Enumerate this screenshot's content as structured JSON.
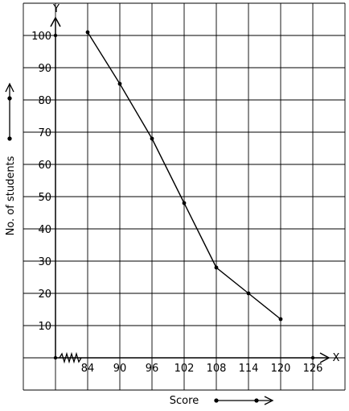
{
  "chart_data": {
    "type": "line",
    "xlabel": "Score",
    "ylabel": "No. of students",
    "axis_x_name": "X",
    "axis_y_name": "Y",
    "x_ticks": [
      84,
      90,
      96,
      102,
      108,
      114,
      120,
      126
    ],
    "y_ticks": [
      10,
      20,
      30,
      40,
      50,
      60,
      70,
      80,
      90,
      100
    ],
    "xlim": [
      78,
      126
    ],
    "ylim": [
      0,
      100
    ],
    "grid": true,
    "series": [
      {
        "x": [
          84,
          90,
          96,
          102,
          108,
          114,
          120
        ],
        "y": [
          101,
          85,
          68,
          48,
          28,
          20,
          12
        ]
      }
    ],
    "colors": {
      "line": "#000000",
      "grid": "#000000"
    }
  }
}
